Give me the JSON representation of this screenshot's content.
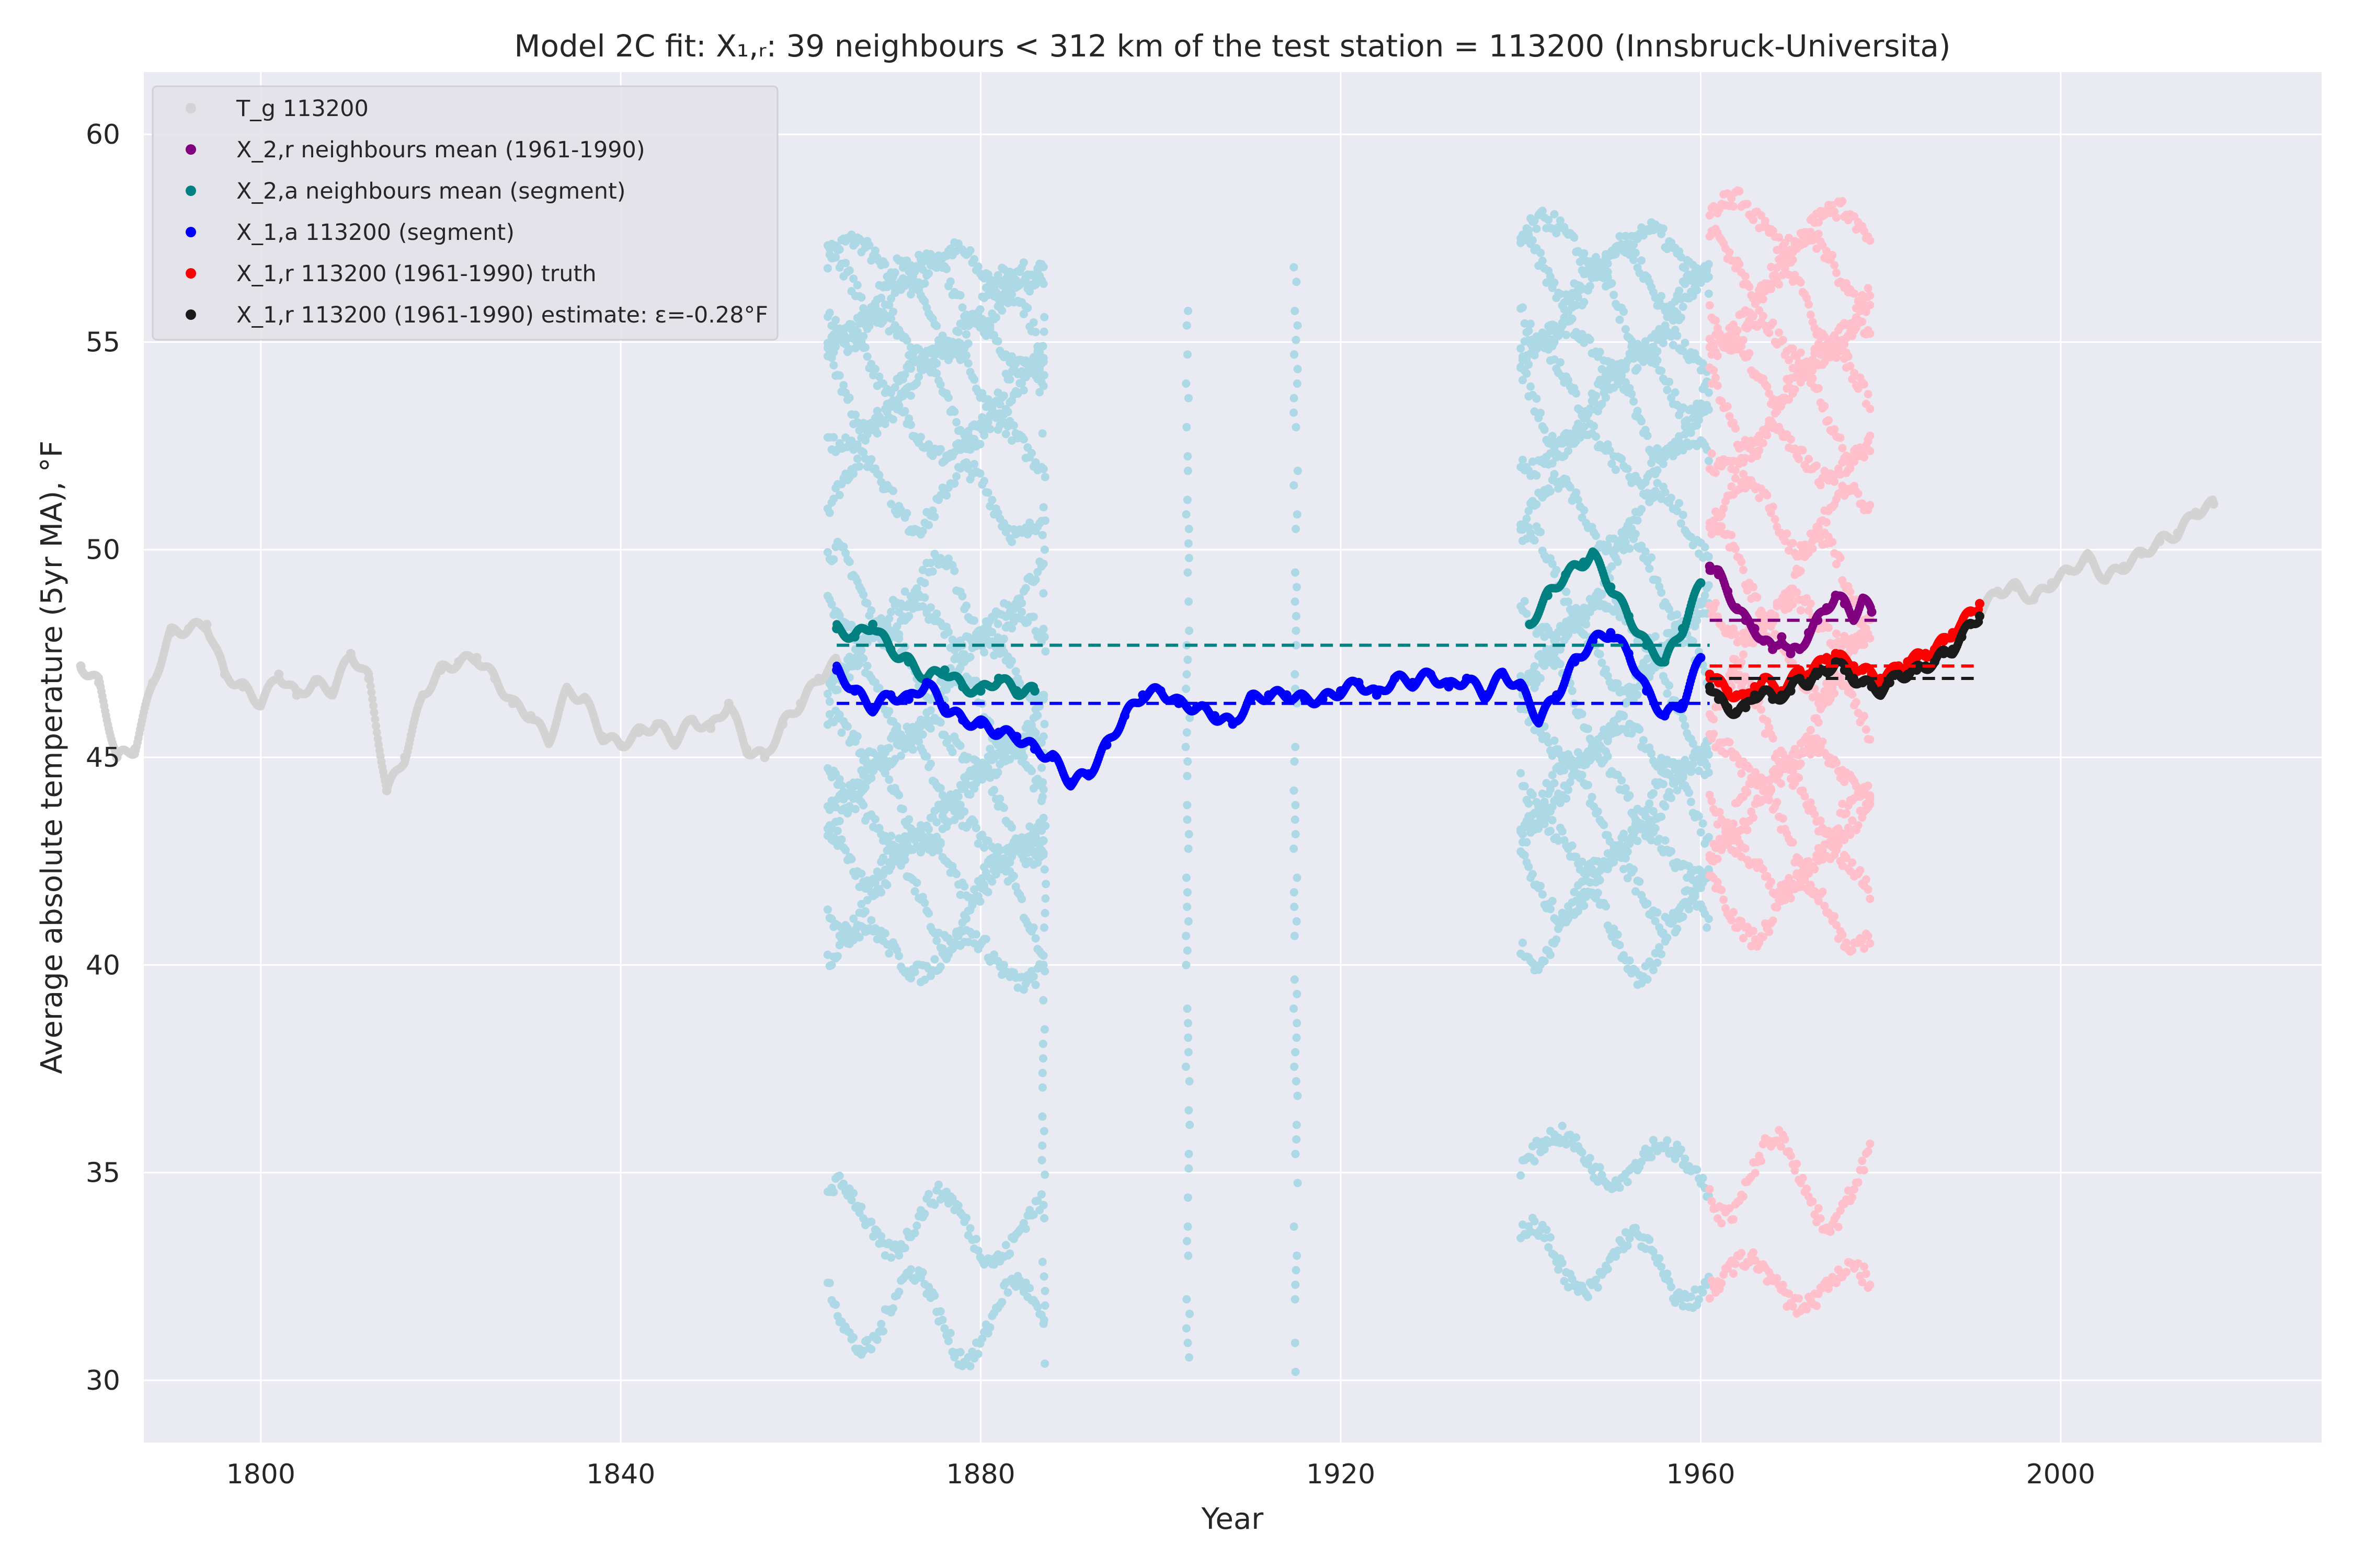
{
  "chart_data": {
    "type": "scatter",
    "title": "Model 2C fit: X₁,ᵣ: 39 neighbours < 312 km of the test station = 113200 (Innsbruck-Universita)",
    "xlabel": "Year",
    "ylabel": "Average absolute temperature (5yr MA), °F",
    "xlim": [
      1787,
      2029
    ],
    "ylim": [
      28.5,
      61.5
    ],
    "xticks": [
      1800,
      1840,
      1880,
      1920,
      1960,
      2000
    ],
    "yticks": [
      30,
      35,
      40,
      45,
      50,
      55,
      60
    ],
    "grid": true,
    "legend_position": "top-left",
    "legend": [
      {
        "label": "T_g 113200",
        "color": "#d3d3d3"
      },
      {
        "label": "X_2,r neighbours mean (1961-1990)",
        "color": "#800080"
      },
      {
        "label": "X_2,a neighbours mean (segment)",
        "color": "#008080"
      },
      {
        "label": "X_1,a 113200 (segment)",
        "color": "#0000ff"
      },
      {
        "label": "X_1,r 113200 (1961-1990) truth",
        "color": "#ff0000"
      },
      {
        "label": "X_1,r 113200 (1961-1990) estimate: ε=-0.28°F",
        "color": "#1a1a1a"
      }
    ],
    "series": [
      {
        "name": "T_g 113200",
        "color": "#d3d3d3",
        "x": [
          1780,
          1782,
          1784,
          1786,
          1788,
          1790,
          1792,
          1794,
          1796,
          1798,
          1800,
          1802,
          1804,
          1806,
          1808,
          1810,
          1812,
          1814,
          1816,
          1818,
          1820,
          1822,
          1824,
          1826,
          1828,
          1830,
          1832,
          1834,
          1836,
          1838,
          1840,
          1842,
          1844,
          1846,
          1848,
          1850,
          1852,
          1854,
          1856,
          1858,
          1860,
          1862,
          1864,
          1991,
          1993,
          1995,
          1997,
          1999,
          2001,
          2003,
          2005,
          2007,
          2009,
          2011,
          2013,
          2015,
          2017
        ],
        "y": [
          47.2,
          46.8,
          45.0,
          45.2,
          46.8,
          48.0,
          48.1,
          48.2,
          47.0,
          46.7,
          46.3,
          47.0,
          46.5,
          46.8,
          46.6,
          47.5,
          46.9,
          44.2,
          45.0,
          46.5,
          47.1,
          47.3,
          47.4,
          46.9,
          46.3,
          46.0,
          45.4,
          46.6,
          46.4,
          45.5,
          45.3,
          45.6,
          45.8,
          45.4,
          45.9,
          45.7,
          46.3,
          45.2,
          45.0,
          45.8,
          46.3,
          46.9,
          47.3,
          48.5,
          49.0,
          49.1,
          48.8,
          49.2,
          49.5,
          49.8,
          49.3,
          49.6,
          49.9,
          50.2,
          50.4,
          50.9,
          51.1
        ]
      },
      {
        "name": "X_2,r neighbours mean (1961-1990)",
        "color": "#800080",
        "x": [
          1961,
          1962,
          1963,
          1964,
          1965,
          1966,
          1967,
          1968,
          1969,
          1970,
          1971,
          1972,
          1973,
          1974,
          1975,
          1976,
          1977,
          1978,
          1979
        ],
        "y": [
          49.6,
          49.4,
          49.0,
          48.6,
          48.3,
          48.1,
          47.8,
          47.6,
          47.9,
          47.5,
          47.6,
          48.0,
          48.3,
          48.6,
          48.9,
          48.7,
          48.4,
          48.8,
          48.5
        ]
      },
      {
        "name": "X_2,a neighbours mean (segment)",
        "color": "#008080",
        "x": [
          1864,
          1866,
          1868,
          1870,
          1872,
          1874,
          1876,
          1878,
          1880,
          1882,
          1884,
          1886,
          1941,
          1943,
          1945,
          1947,
          1948,
          1950,
          1952,
          1954,
          1956,
          1958,
          1960
        ],
        "y": [
          48.1,
          47.9,
          48.2,
          47.6,
          47.3,
          46.9,
          47.1,
          46.7,
          46.6,
          46.9,
          46.6,
          46.6,
          48.2,
          48.9,
          49.4,
          49.7,
          49.9,
          49.1,
          48.4,
          47.7,
          47.3,
          48.1,
          49.2
        ]
      },
      {
        "name": "X_1,a 113200 (segment)",
        "color": "#0000ff",
        "x": [
          1864,
          1866,
          1868,
          1870,
          1872,
          1874,
          1876,
          1878,
          1880,
          1882,
          1884,
          1886,
          1888,
          1890,
          1892,
          1894,
          1896,
          1898,
          1900,
          1902,
          1904,
          1906,
          1908,
          1910,
          1912,
          1914,
          1916,
          1918,
          1920,
          1922,
          1924,
          1926,
          1928,
          1930,
          1932,
          1934,
          1936,
          1938,
          1940,
          1942,
          1944,
          1946,
          1948,
          1950,
          1952,
          1954,
          1956,
          1958,
          1960
        ],
        "y": [
          47.1,
          46.6,
          46.2,
          46.5,
          46.4,
          46.8,
          46.2,
          45.9,
          45.8,
          45.6,
          45.5,
          45.2,
          45.0,
          44.4,
          44.6,
          45.3,
          46.0,
          46.5,
          46.6,
          46.3,
          46.2,
          46.0,
          45.8,
          46.4,
          46.5,
          46.5,
          46.4,
          46.4,
          46.6,
          46.8,
          46.5,
          46.9,
          46.8,
          47.0,
          46.7,
          46.9,
          46.5,
          47.0,
          46.7,
          45.9,
          46.5,
          47.3,
          47.8,
          48.0,
          47.5,
          46.6,
          46.0,
          46.3,
          47.4
        ]
      },
      {
        "name": "X_1,r 113200 (1961-1990) truth",
        "color": "#ff0000",
        "x": [
          1961,
          1962,
          1963,
          1964,
          1965,
          1966,
          1967,
          1968,
          1969,
          1970,
          1971,
          1972,
          1973,
          1974,
          1975,
          1976,
          1977,
          1978,
          1979,
          1980,
          1981,
          1982,
          1983,
          1984,
          1985,
          1986,
          1987,
          1988,
          1989,
          1990,
          1991
        ],
        "y": [
          47.0,
          46.8,
          46.6,
          46.5,
          46.4,
          46.7,
          46.9,
          46.7,
          46.6,
          46.8,
          47.1,
          47.0,
          47.2,
          47.4,
          47.5,
          47.3,
          47.2,
          47.1,
          47.0,
          46.9,
          47.0,
          47.2,
          47.3,
          47.4,
          47.5,
          47.6,
          47.8,
          48.0,
          48.2,
          48.5,
          48.7
        ]
      },
      {
        "name": "X_1,r 113200 (1961-1990) estimate: ε=-0.28°F",
        "color": "#1a1a1a",
        "x": [
          1961,
          1962,
          1963,
          1964,
          1965,
          1966,
          1967,
          1968,
          1969,
          1970,
          1971,
          1972,
          1973,
          1974,
          1975,
          1976,
          1977,
          1978,
          1979,
          1980,
          1981,
          1982,
          1983,
          1984,
          1985,
          1986,
          1987,
          1988,
          1989,
          1990,
          1991
        ],
        "y": [
          46.7,
          46.4,
          46.2,
          46.1,
          46.2,
          46.5,
          46.6,
          46.4,
          46.5,
          46.6,
          46.9,
          46.8,
          47.0,
          47.1,
          47.3,
          47.1,
          46.9,
          46.8,
          46.7,
          46.6,
          46.8,
          47.0,
          47.0,
          47.1,
          47.2,
          47.3,
          47.5,
          47.6,
          47.9,
          48.2,
          48.4
        ]
      }
    ],
    "neighbour_bands": [
      {
        "color": "#add8e6",
        "x_start": 1863,
        "x_end": 1887,
        "values": [
          57.0,
          56.5,
          56.0,
          55.3,
          54.5,
          53.9,
          53.0,
          51.5,
          49.0,
          48.5,
          47.5,
          46.5,
          45.5,
          45.0,
          44.0,
          43.5,
          42.7,
          41.8,
          40.5,
          34.0,
          31.8
        ]
      },
      {
        "color": "#add8e6",
        "x_start": 1940,
        "x_end": 1961,
        "values": [
          57.5,
          56.8,
          56.0,
          55.0,
          54.3,
          53.5,
          52.5,
          51.0,
          49.5,
          48.5,
          47.5,
          46.5,
          45.5,
          44.5,
          44.0,
          43.0,
          42.0,
          41.0,
          35.5,
          33.0
        ]
      },
      {
        "color": "#ffc0cb",
        "x_start": 1961,
        "x_end": 1979,
        "values": [
          58.0,
          57.0,
          56.0,
          55.2,
          54.5,
          53.5,
          52.5,
          51.0,
          49.5,
          48.5,
          47.5,
          46.0,
          45.0,
          44.0,
          43.5,
          42.5,
          41.5,
          35.0,
          32.5
        ]
      }
    ],
    "neighbour_spikes": [
      {
        "x": 1887,
        "min": 30.4,
        "max": 55.8
      },
      {
        "x": 1903,
        "min": 30.2,
        "max": 55.8
      },
      {
        "x": 1915,
        "min": 30.2,
        "max": 57.0
      }
    ],
    "reference_lines": [
      {
        "color": "#008080",
        "x_start": 1864,
        "x_end": 1961,
        "y": 47.7
      },
      {
        "color": "#0000ff",
        "x_start": 1864,
        "x_end": 1961,
        "y": 46.3
      },
      {
        "color": "#800080",
        "x_start": 1961,
        "x_end": 1980,
        "y": 48.3
      },
      {
        "color": "#ff0000",
        "x_start": 1961,
        "x_end": 1991,
        "y": 47.2
      },
      {
        "color": "#1a1a1a",
        "x_start": 1961,
        "x_end": 1991,
        "y": 46.9
      }
    ]
  }
}
